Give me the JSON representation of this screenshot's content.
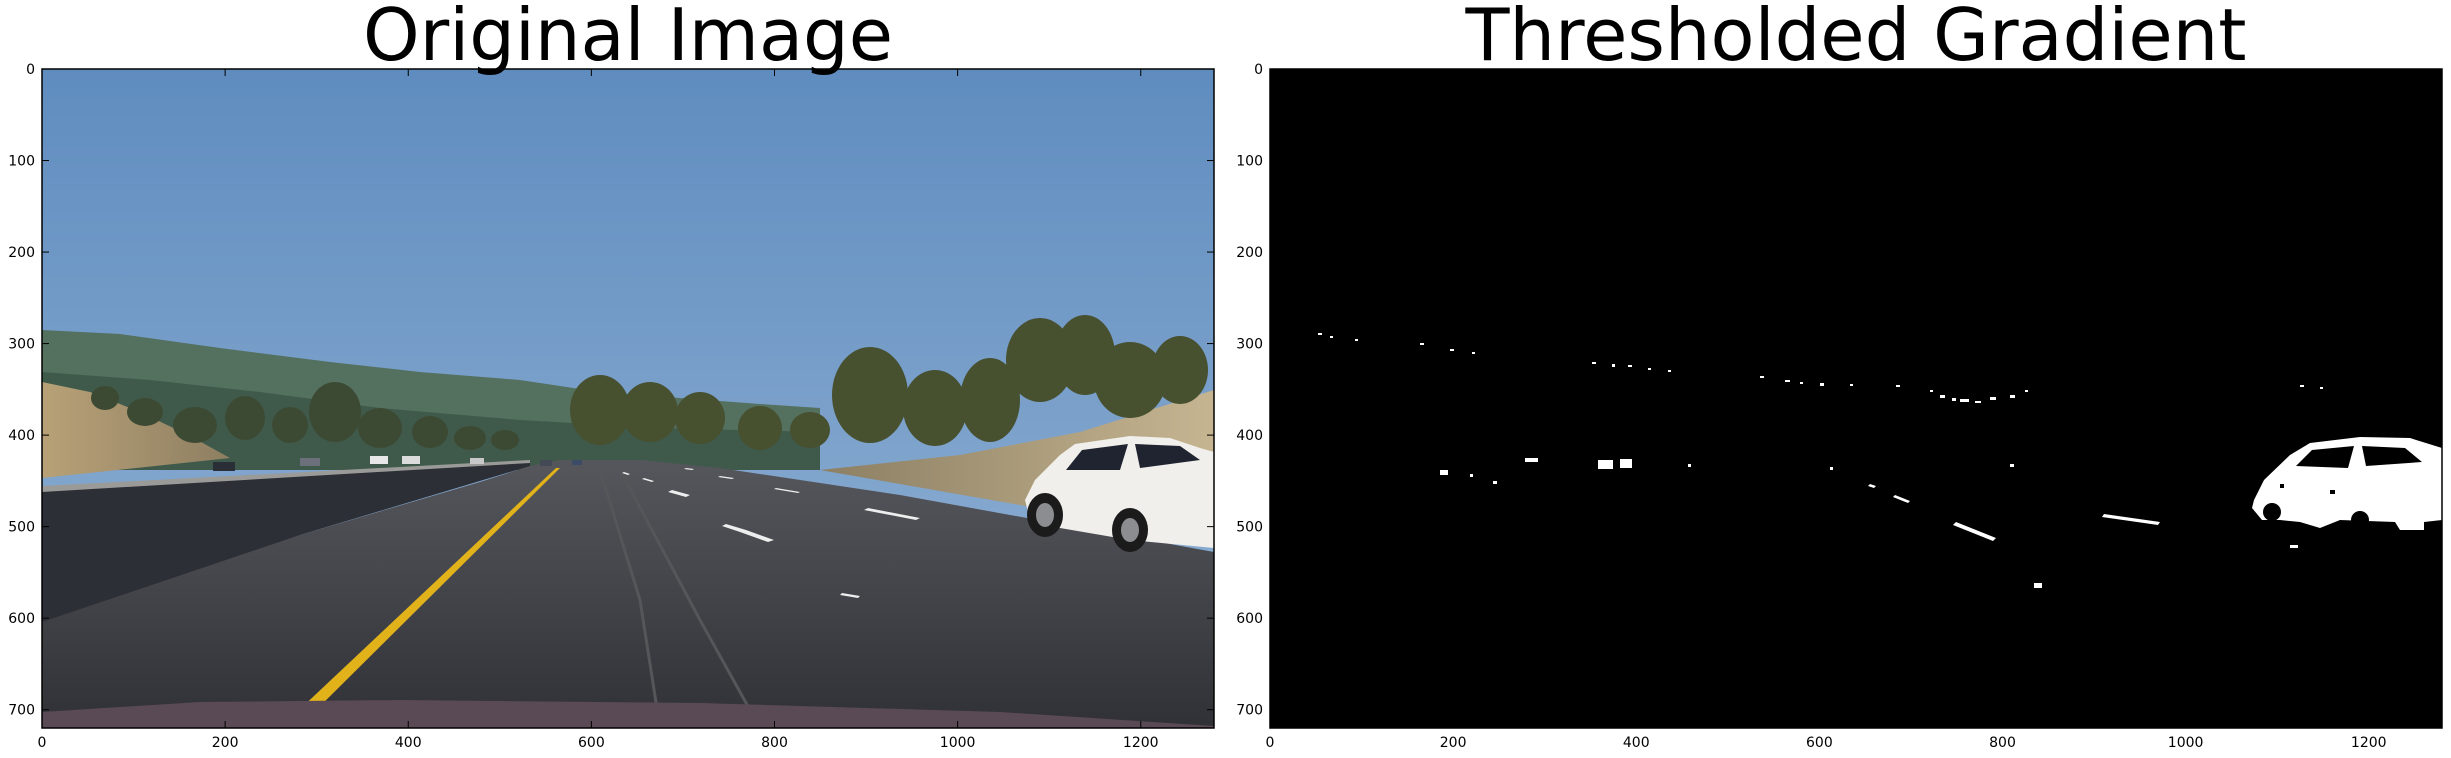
{
  "chart_data": [
    {
      "type": "image",
      "title": "Original Image",
      "xlim": [
        0,
        1280
      ],
      "ylim": [
        720,
        0
      ],
      "xticks": [
        0,
        200,
        400,
        600,
        800,
        1000,
        1200
      ],
      "yticks": [
        0,
        100,
        200,
        300,
        400,
        500,
        600,
        700
      ],
      "colors": {
        "sky": "#6b96c7",
        "horizon": "#a9c1d8",
        "hills": "#4f6658",
        "road": "#3b3c42",
        "lane_yellow": "#e0b019",
        "lane_white": "#eeeeee",
        "barrier": "#2f3238",
        "car": "#f2f0ee"
      }
    },
    {
      "type": "image",
      "title": "Thresholded Gradient",
      "xlim": [
        0,
        1280
      ],
      "ylim": [
        720,
        0
      ],
      "xticks": [
        0,
        200,
        400,
        600,
        800,
        1000,
        1200
      ],
      "yticks": [
        0,
        100,
        200,
        300,
        400,
        500,
        600,
        700
      ],
      "colors": {
        "background": "#000000",
        "foreground": "#ffffff"
      }
    }
  ]
}
